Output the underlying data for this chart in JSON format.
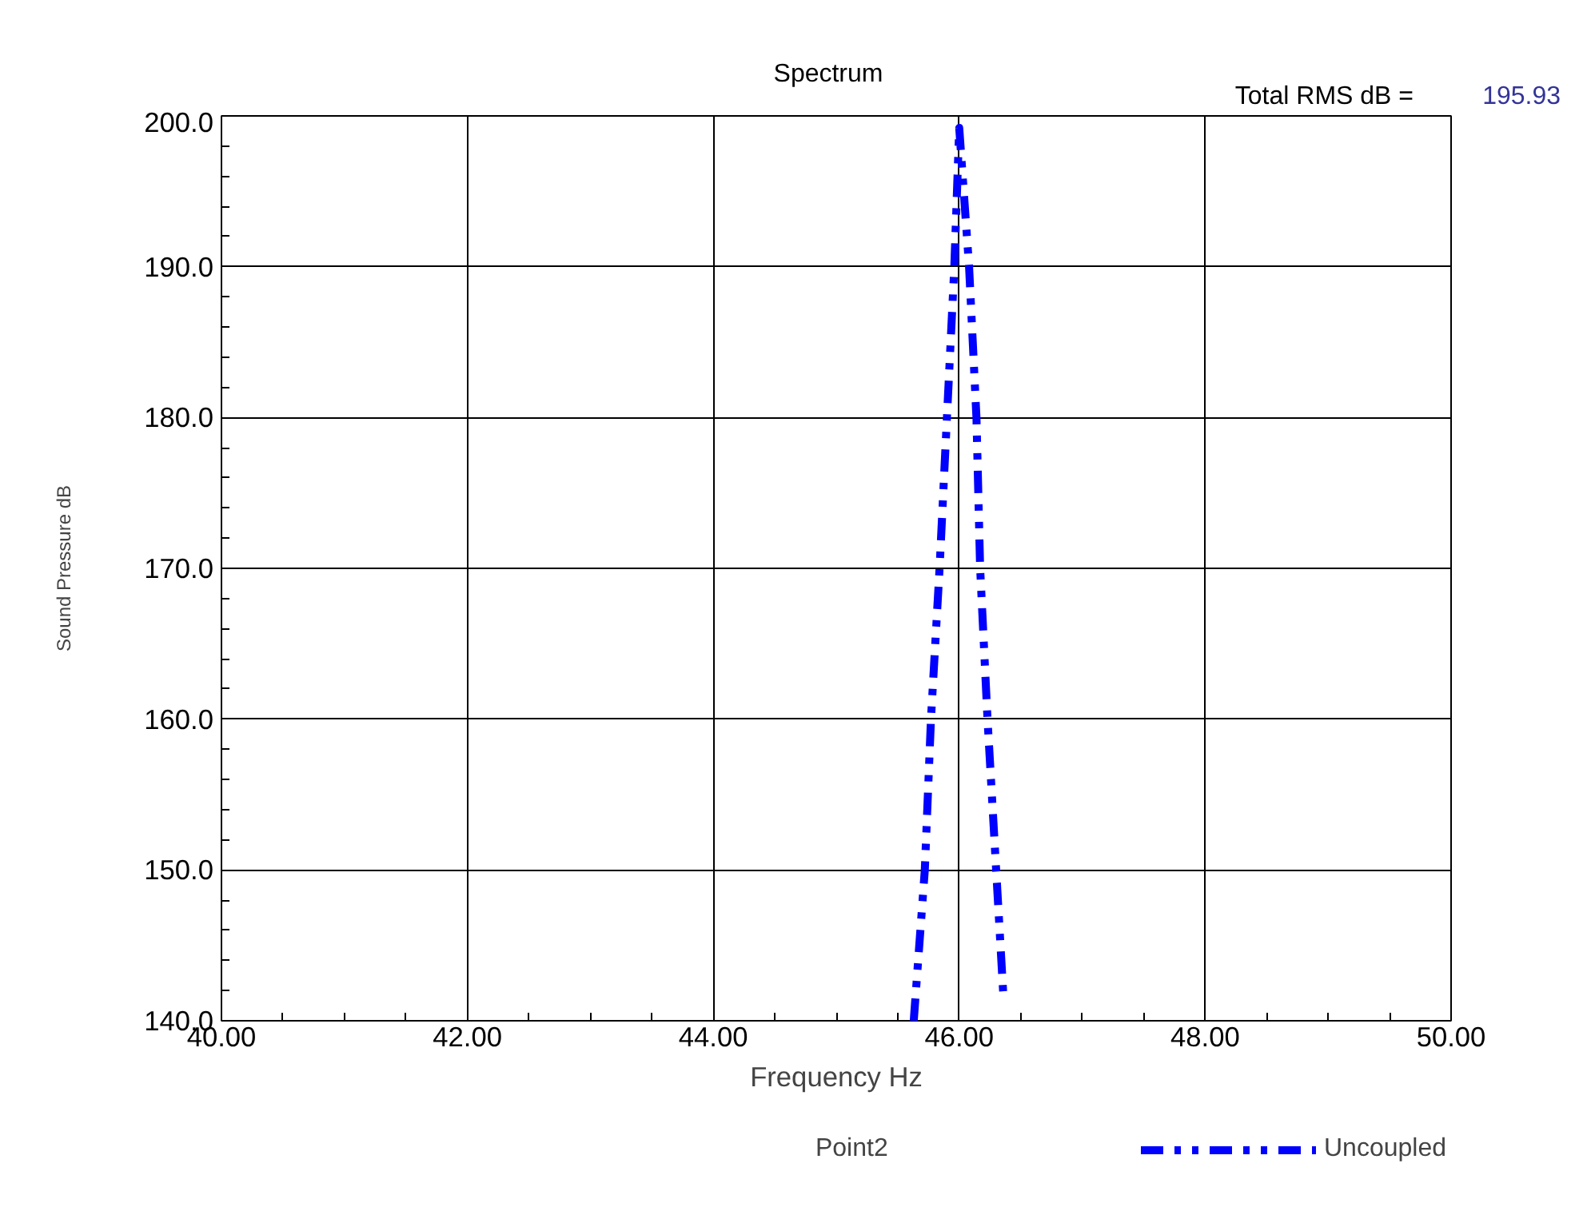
{
  "chart_data": {
    "type": "line",
    "title": "Spectrum",
    "xlabel": "Frequency Hz",
    "ylabel": "Sound Pressure dB",
    "annotations": [
      "Total RMS dB =",
      "195.93",
      "Point2"
    ],
    "x": [
      45.63,
      45.72,
      45.77,
      45.84,
      45.9,
      45.96,
      46.0,
      46.08,
      46.14,
      46.17,
      46.23,
      46.36
    ],
    "series": [
      {
        "name": "Uncoupled",
        "color": "#0000ff",
        "values": [
          140,
          150,
          160,
          170,
          180,
          190,
          199.2,
          190,
          180,
          170,
          160,
          141.5
        ]
      }
    ],
    "xlim": [
      40,
      50
    ],
    "ylim": [
      140,
      200
    ],
    "xticks": [
      {
        "value": 40,
        "label": "40.00"
      },
      {
        "value": 42,
        "label": "42.00"
      },
      {
        "value": 44,
        "label": "44.00"
      },
      {
        "value": 46,
        "label": "46.00"
      },
      {
        "value": 48,
        "label": "48.00"
      },
      {
        "value": 50,
        "label": "50.00"
      }
    ],
    "yticks": [
      {
        "value": 140,
        "label": "140.0"
      },
      {
        "value": 150,
        "label": "150.0"
      },
      {
        "value": 160,
        "label": "160.0"
      },
      {
        "value": 170,
        "label": "170.0"
      },
      {
        "value": 180,
        "label": "180.0"
      },
      {
        "value": 190,
        "label": "190.0"
      },
      {
        "value": 200,
        "label": "200.0"
      }
    ],
    "grid": true,
    "legend": "bottom right",
    "line_style": "dashdot",
    "marker": "none"
  }
}
